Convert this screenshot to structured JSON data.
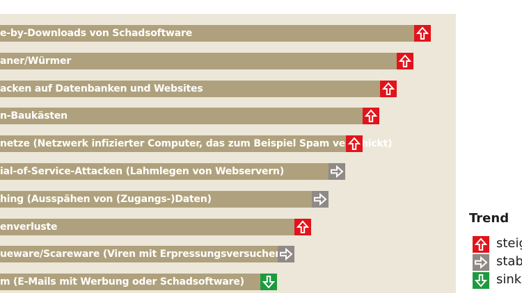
{
  "colors": {
    "panel_bg": "#ece7d9",
    "bar": "#afa17d",
    "up": "#e1141c",
    "stable": "#8f8a86",
    "down": "#1e9a3e"
  },
  "chart_data": {
    "type": "bar",
    "orientation": "horizontal",
    "categories": [
      "Drive-by-Downloads von Schadsoftware",
      "Trojaner/Würmer",
      "Attacken auf Datenbanken und Websites",
      "Exploit-Baukästen",
      "Botnetze (Netzwerk infizierter Computer, das zum Beispiel Spam verschickt)",
      "Denial-of-Service-Attacken (Lahmlegen von Webservern)",
      "Phishing (Ausspähen von (Zugangs-)Daten)",
      "Datenverluste",
      "Rogueware/Scareware (Viren mit Erpressungsversuchen)",
      "Spam (E-Mails mit Werbung oder Schadsoftware)"
    ],
    "visible_labels": [
      "e-by-Downloads von Schadsoftware",
      "aner/Würmer",
      "acken auf Datenbanken und Websites",
      "n-Baukästen",
      "netze (Netzwerk infizierter Computer, das zum Beispiel Spam verschickt)",
      "ial-of-Service-Attacken (Lahmlegen von Webservern)",
      "hing (Ausspähen von (Zugangs-)Daten)",
      "enverluste",
      "ueware/Scareware (Viren mit Erpressungsversuchen)",
      "m (E-Mails mit Werbung oder Schadsoftware)"
    ],
    "values": [
      10,
      9,
      8,
      7,
      6,
      5,
      4,
      3,
      2,
      1
    ],
    "trends": [
      "up",
      "up",
      "up",
      "up",
      "up",
      "stable",
      "stable",
      "up",
      "stable",
      "down"
    ],
    "legend": {
      "title": "Trend",
      "items": [
        {
          "key": "up",
          "label": "steig"
        },
        {
          "key": "stable",
          "label": "stab"
        },
        {
          "key": "down",
          "label": "sink"
        }
      ]
    }
  }
}
